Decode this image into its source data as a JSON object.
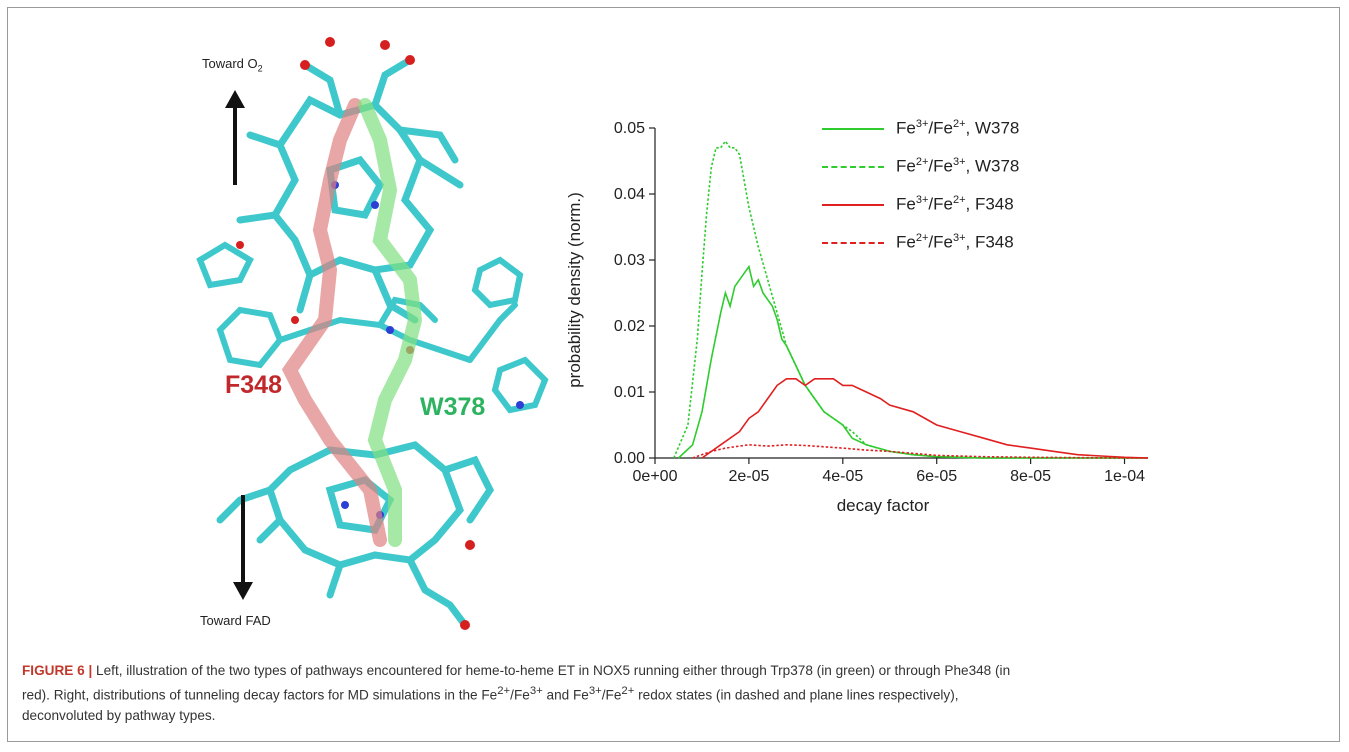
{
  "molecule": {
    "top_arrow_label": "Toward O",
    "top_arrow_subscript": "2",
    "bottom_arrow_label": "Toward FAD",
    "pathway_red_label": "F348",
    "pathway_green_label": "W378",
    "colors": {
      "red_path": "#e08080",
      "green_path": "#80e080",
      "red_label": "#c0282c",
      "green_label": "#2db360",
      "stick": "#3ec8cc",
      "oxygen": "#d62020",
      "nitrogen": "#2e3fd6",
      "hydrogen": "#f0f0f0"
    }
  },
  "chart_data": {
    "type": "line",
    "xlabel": "decay factor",
    "ylabel": "probability density (norm.)",
    "xlim": [
      0,
      0.000105
    ],
    "ylim": [
      0,
      0.05
    ],
    "x_ticks": [
      "0e+00",
      "2e-05",
      "4e-05",
      "6e-05",
      "8e-05",
      "1e-04"
    ],
    "y_ticks": [
      "0.00",
      "0.01",
      "0.02",
      "0.03",
      "0.04",
      "0.05"
    ],
    "legend_position": "top-right",
    "series": [
      {
        "name": "Fe3+/Fe2+, W378",
        "legend_main": "Fe",
        "ion1": "3+",
        "ion2": "2+",
        "suffix": ", W378",
        "color": "#2ecc2e",
        "style": "solid",
        "x": [
          5e-06,
          8e-06,
          1e-05,
          1.2e-05,
          1.4e-05,
          1.5e-05,
          1.6e-05,
          1.7e-05,
          1.8e-05,
          1.9e-05,
          2e-05,
          2.1e-05,
          2.2e-05,
          2.3e-05,
          2.4e-05,
          2.5e-05,
          2.6e-05,
          2.7e-05,
          2.8e-05,
          3e-05,
          3.2e-05,
          3.4e-05,
          3.6e-05,
          3.8e-05,
          4e-05,
          4.2e-05,
          4.5e-05,
          5e-05,
          5.5e-05,
          6e-05,
          6.5e-05,
          7e-05,
          8e-05,
          9e-05,
          0.0001,
          0.000105
        ],
        "y": [
          0.0,
          0.002,
          0.007,
          0.015,
          0.022,
          0.025,
          0.023,
          0.026,
          0.027,
          0.028,
          0.029,
          0.026,
          0.027,
          0.025,
          0.024,
          0.023,
          0.021,
          0.018,
          0.017,
          0.014,
          0.011,
          0.009,
          0.007,
          0.006,
          0.005,
          0.003,
          0.002,
          0.001,
          0.0005,
          0.0002,
          0.0001,
          0.0,
          0.0,
          0.0,
          0.0,
          0.0
        ]
      },
      {
        "name": "Fe2+/Fe3+, W378",
        "legend_main": "Fe",
        "ion1": "2+",
        "ion2": "3+",
        "suffix": ", W378",
        "color": "#2ecc2e",
        "style": "dashed",
        "x": [
          4e-06,
          7e-06,
          9e-06,
          1e-05,
          1.1e-05,
          1.2e-05,
          1.3e-05,
          1.4e-05,
          1.5e-05,
          1.6e-05,
          1.7e-05,
          1.8e-05,
          1.9e-05,
          2e-05,
          2.2e-05,
          2.4e-05,
          2.6e-05,
          2.8e-05,
          3e-05,
          3.2e-05,
          3.4e-05,
          3.6e-05,
          3.8e-05,
          4e-05,
          4.2e-05,
          4.5e-05,
          5e-05,
          5.5e-05,
          6e-05,
          7e-05,
          8e-05,
          0.0001,
          0.000105
        ],
        "y": [
          0.0,
          0.005,
          0.018,
          0.028,
          0.037,
          0.044,
          0.047,
          0.047,
          0.048,
          0.047,
          0.047,
          0.046,
          0.042,
          0.038,
          0.032,
          0.027,
          0.022,
          0.017,
          0.014,
          0.011,
          0.009,
          0.007,
          0.006,
          0.005,
          0.004,
          0.002,
          0.001,
          0.0005,
          0.0002,
          0.0,
          0.0,
          0.0,
          0.0
        ]
      },
      {
        "name": "Fe3+/Fe2+, F348",
        "legend_main": "Fe",
        "ion1": "3+",
        "ion2": "2+",
        "suffix": ", F348",
        "color": "#e02020",
        "style": "solid",
        "x": [
          1e-05,
          1.4e-05,
          1.8e-05,
          2e-05,
          2.2e-05,
          2.4e-05,
          2.6e-05,
          2.8e-05,
          3e-05,
          3.2e-05,
          3.4e-05,
          3.6e-05,
          3.8e-05,
          4e-05,
          4.2e-05,
          4.5e-05,
          4.8e-05,
          5e-05,
          5.5e-05,
          6e-05,
          6.5e-05,
          7e-05,
          7.5e-05,
          8e-05,
          8.5e-05,
          9e-05,
          9.5e-05,
          0.0001,
          0.000105
        ],
        "y": [
          0.0,
          0.002,
          0.004,
          0.006,
          0.007,
          0.009,
          0.011,
          0.012,
          0.012,
          0.011,
          0.012,
          0.012,
          0.012,
          0.011,
          0.011,
          0.01,
          0.009,
          0.008,
          0.007,
          0.005,
          0.004,
          0.003,
          0.002,
          0.0015,
          0.001,
          0.0005,
          0.0003,
          0.0001,
          0.0
        ]
      },
      {
        "name": "Fe2+/Fe3+, F348",
        "legend_main": "Fe",
        "ion1": "2+",
        "ion2": "3+",
        "suffix": ", F348",
        "color": "#e02020",
        "style": "dashed",
        "x": [
          8e-06,
          1.2e-05,
          1.5e-05,
          1.8e-05,
          2e-05,
          2.4e-05,
          2.8e-05,
          3.2e-05,
          3.6e-05,
          4e-05,
          4.5e-05,
          5e-05,
          5.5e-05,
          6e-05,
          7e-05,
          8e-05,
          0.0001,
          0.000105
        ],
        "y": [
          0.0,
          0.001,
          0.0015,
          0.0018,
          0.002,
          0.0018,
          0.002,
          0.0019,
          0.0017,
          0.0015,
          0.0012,
          0.001,
          0.0007,
          0.0004,
          0.0002,
          0.0001,
          0.0,
          0.0
        ]
      }
    ]
  },
  "caption": {
    "label": "FIGURE 6 |",
    "line1": " Left, illustration of the two types of pathways encountered for heme-to-heme ET in NOX5 running either through Trp378 (in green) or through Phe348 (in",
    "line2a": "red). Right, distributions of tunneling decay factors for MD simulations in the Fe",
    "line2_sup1": "2+",
    "line2b": "/Fe",
    "line2_sup2": "3+",
    "line2c": " and Fe",
    "line2_sup3": "3+",
    "line2d": "/Fe",
    "line2_sup4": "2+",
    "line2e": " redox states (in dashed and plane lines respectively),",
    "line3": "deconvoluted by pathway types."
  }
}
